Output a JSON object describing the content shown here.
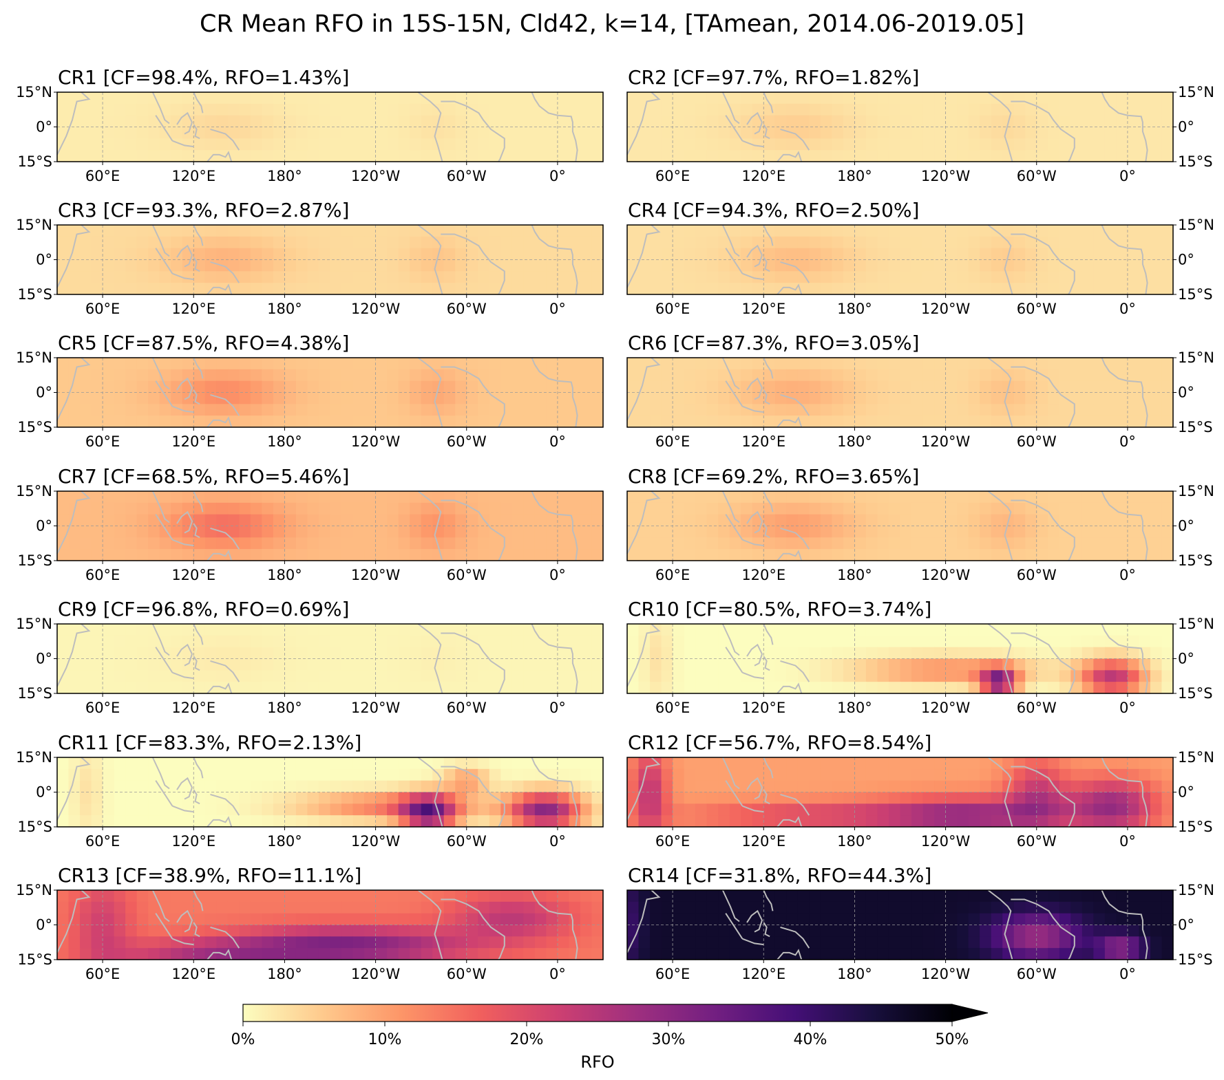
{
  "figure_title": "CR Mean RFO in 15S-15N, Cld42, k=14, [TAmean, 2014.06-2019.05]",
  "chart_data": [
    {
      "type": "heatmap",
      "title": "CR1 [CF=98.4%, RFO=1.43%]",
      "cr": "CR1",
      "cf": 98.4,
      "rfo": 1.43
    },
    {
      "type": "heatmap",
      "title": "CR2 [CF=97.7%, RFO=1.82%]",
      "cr": "CR2",
      "cf": 97.7,
      "rfo": 1.82
    },
    {
      "type": "heatmap",
      "title": "CR3 [CF=93.3%, RFO=2.87%]",
      "cr": "CR3",
      "cf": 93.3,
      "rfo": 2.87
    },
    {
      "type": "heatmap",
      "title": "CR4 [CF=94.3%, RFO=2.50%]",
      "cr": "CR4",
      "cf": 94.3,
      "rfo": 2.5
    },
    {
      "type": "heatmap",
      "title": "CR5 [CF=87.5%, RFO=4.38%]",
      "cr": "CR5",
      "cf": 87.5,
      "rfo": 4.38
    },
    {
      "type": "heatmap",
      "title": "CR6 [CF=87.3%, RFO=3.05%]",
      "cr": "CR6",
      "cf": 87.3,
      "rfo": 3.05
    },
    {
      "type": "heatmap",
      "title": "CR7 [CF=68.5%, RFO=5.46%]",
      "cr": "CR7",
      "cf": 68.5,
      "rfo": 5.46
    },
    {
      "type": "heatmap",
      "title": "CR8 [CF=69.2%, RFO=3.65%]",
      "cr": "CR8",
      "cf": 69.2,
      "rfo": 3.65
    },
    {
      "type": "heatmap",
      "title": "CR9 [CF=96.8%, RFO=0.69%]",
      "cr": "CR9",
      "cf": 96.8,
      "rfo": 0.69
    },
    {
      "type": "heatmap",
      "title": "CR10 [CF=80.5%, RFO=3.74%]",
      "cr": "CR10",
      "cf": 80.5,
      "rfo": 3.74
    },
    {
      "type": "heatmap",
      "title": "CR11 [CF=83.3%, RFO=2.13%]",
      "cr": "CR11",
      "cf": 83.3,
      "rfo": 2.13
    },
    {
      "type": "heatmap",
      "title": "CR12 [CF=56.7%, RFO=8.54%]",
      "cr": "CR12",
      "cf": 56.7,
      "rfo": 8.54
    },
    {
      "type": "heatmap",
      "title": "CR13 [CF=38.9%, RFO=11.1%]",
      "cr": "CR13",
      "cf": 38.9,
      "rfo": 11.1
    },
    {
      "type": "heatmap",
      "title": "CR14 [CF=31.8%, RFO=44.3%]",
      "cr": "CR14",
      "cf": 31.8,
      "rfo": 44.3
    }
  ],
  "axes": {
    "lon_ticks": [
      "60°E",
      "120°E",
      "180°",
      "120°W",
      "60°W",
      "0°"
    ],
    "lat_ticks": [
      "15°N",
      "0°",
      "15°S"
    ],
    "lon_range": [
      30,
      390
    ],
    "lat_range": [
      -15,
      15
    ]
  },
  "colorbar": {
    "label": "RFO",
    "ticks": [
      "0%",
      "10%",
      "20%",
      "30%",
      "40%",
      "50%"
    ],
    "range": [
      0,
      50
    ],
    "extend": "max",
    "colormap": "magma_r",
    "stops": [
      "#fcfdbf",
      "#feca8d",
      "#fd9668",
      "#f1605d",
      "#cd4071",
      "#9e2f7f",
      "#721f81",
      "#440f76",
      "#180f3d",
      "#000004"
    ]
  },
  "coastline_color": "#bdbdbd"
}
